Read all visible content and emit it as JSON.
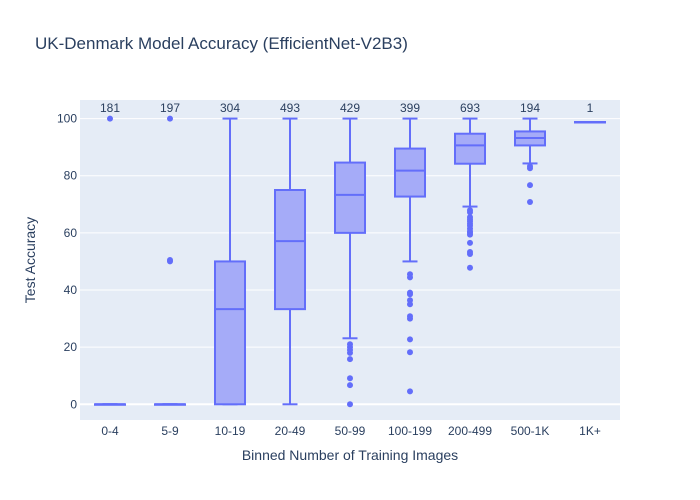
{
  "chart_data": {
    "type": "box",
    "title": "UK-Denmark Model Accuracy (EfficientNet-V2B3)",
    "xlabel": "Binned Number of Training Images",
    "ylabel": "Test Accuracy",
    "ylim": [
      -5.5,
      106.5
    ],
    "yticks": [
      0,
      20,
      40,
      60,
      80,
      100
    ],
    "grid": true,
    "colors": {
      "box_line": "#636efa",
      "box_fill": "#a5abf8",
      "plot_bg": "#e5ecf6",
      "text": "#2a3f5f"
    },
    "categories": [
      "0-4",
      "5-9",
      "10-19",
      "20-49",
      "50-99",
      "100-199",
      "200-499",
      "500-1K",
      "1K+"
    ],
    "boxes": [
      {
        "category": "0-4",
        "count": "181",
        "lower_whisker": 0,
        "q1": 0,
        "median": 0,
        "q3": 0,
        "upper_whisker": 0,
        "outliers": [
          100
        ]
      },
      {
        "category": "5-9",
        "count": "197",
        "lower_whisker": 0,
        "q1": 0,
        "median": 0,
        "q3": 0,
        "upper_whisker": 0,
        "outliers": [
          100,
          50,
          50.5
        ]
      },
      {
        "category": "10-19",
        "count": "304",
        "lower_whisker": 0,
        "q1": 0,
        "median": 33.3,
        "q3": 50,
        "upper_whisker": 100,
        "outliers": []
      },
      {
        "category": "20-49",
        "count": "493",
        "lower_whisker": 0,
        "q1": 33.3,
        "median": 57.1,
        "q3": 75,
        "upper_whisker": 100,
        "outliers": []
      },
      {
        "category": "50-99",
        "count": "429",
        "lower_whisker": 23.1,
        "q1": 60,
        "median": 73.3,
        "q3": 84.6,
        "upper_whisker": 100,
        "outliers": [
          21,
          20,
          19,
          18,
          15.8,
          9.1,
          6.7,
          0
        ]
      },
      {
        "category": "100-199",
        "count": "399",
        "lower_whisker": 50,
        "q1": 72.7,
        "median": 81.8,
        "q3": 89.5,
        "upper_whisker": 100,
        "outliers": [
          45.5,
          44.4,
          39.1,
          38.5,
          36.4,
          35,
          30.8,
          30,
          22.7,
          18.2,
          4.5
        ]
      },
      {
        "category": "200-499",
        "count": "693",
        "lower_whisker": 69.2,
        "q1": 84.2,
        "median": 90.6,
        "q3": 94.7,
        "upper_whisker": 100,
        "outliers": [
          67.9,
          67.2,
          65.5,
          64.7,
          64,
          63.2,
          62.5,
          61.5,
          60.5,
          60,
          59.4,
          56.5,
          53.3,
          52.6,
          47.8
        ]
      },
      {
        "category": "500-1K",
        "count": "194",
        "lower_whisker": 84.3,
        "q1": 90.6,
        "median": 93.2,
        "q3": 95.5,
        "upper_whisker": 100,
        "outliers": [
          83.3,
          82.6,
          76.7,
          70.8
        ]
      },
      {
        "category": "1K+",
        "count": "1",
        "lower_whisker": 98.8,
        "q1": 98.8,
        "median": 98.8,
        "q3": 98.8,
        "upper_whisker": 98.8,
        "outliers": []
      }
    ]
  }
}
